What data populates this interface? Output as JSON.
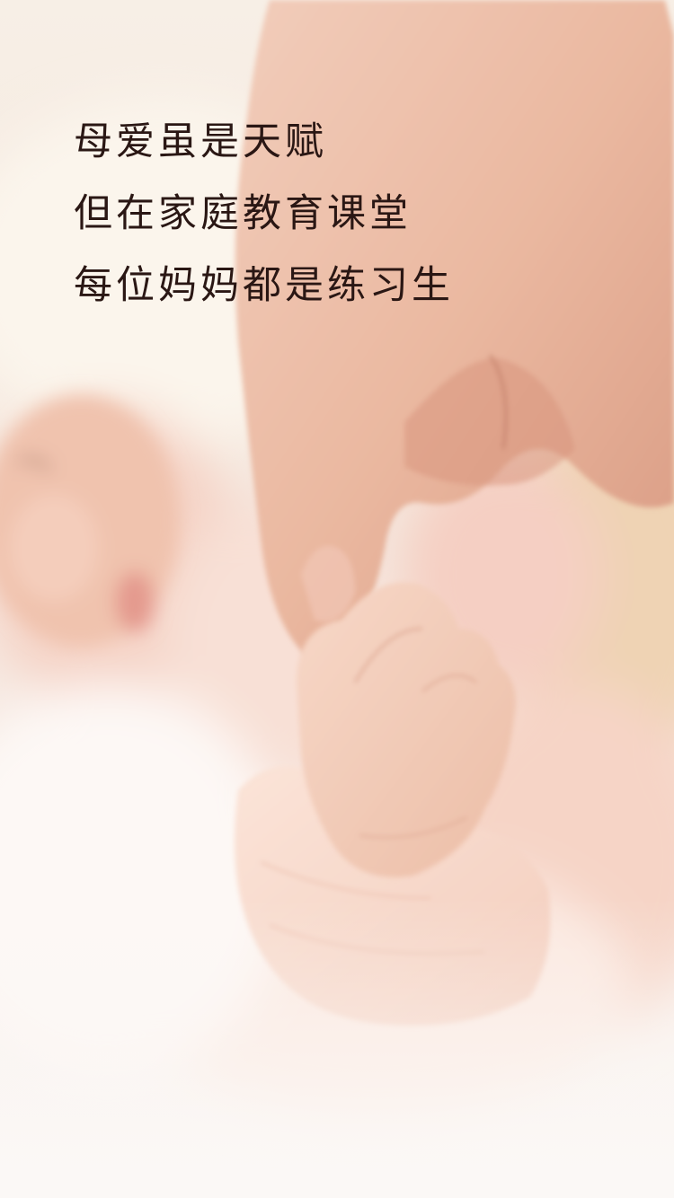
{
  "tagline": {
    "lines": [
      "母爱虽是天赋",
      "但在家庭教育课堂",
      "每位妈妈都是练习生"
    ]
  },
  "background": {
    "icon": "baby-hand-holding-finger-photo",
    "colors": {
      "skin": "#e9b59c",
      "blanket": "#f6d8cb",
      "cream": "#fbf6f0",
      "text": "#2a1714"
    }
  }
}
